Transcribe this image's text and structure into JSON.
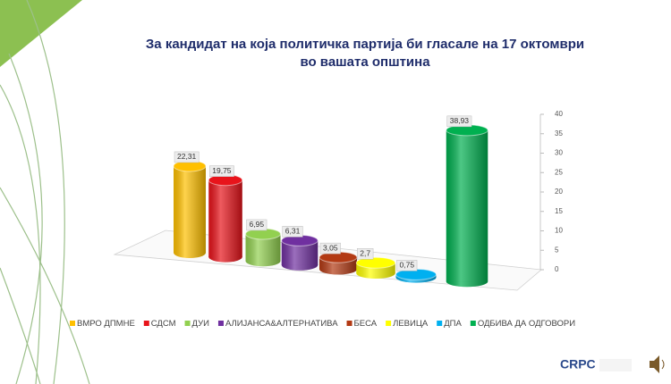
{
  "chart_data": {
    "type": "bar",
    "title": [
      "За кандидат на  која политичка партија би гласале на 17 октомври",
      "во вашата општина"
    ],
    "categories": [
      "ВМРО ДПМНЕ",
      "СДСМ",
      "ДУИ",
      "АЛИЈАНСА&АЛТЕРНАТИВА",
      "БЕСА",
      "ЛЕВИЦА",
      "ДПА",
      "ОДБИВА ДА ОДГОВОРИ"
    ],
    "values": [
      22.31,
      19.75,
      6.95,
      6.31,
      3.05,
      2.7,
      0.75,
      38.93
    ],
    "value_labels": [
      "22,31",
      "19,75",
      "6,95",
      "6,31",
      "3,05",
      "2,7",
      "0,75",
      "38,93"
    ],
    "colors": [
      "#ffc000",
      "#e8141b",
      "#92d050",
      "#7030a0",
      "#b33a14",
      "#ffff00",
      "#00b0f0",
      "#00b050"
    ],
    "ylim": [
      0,
      40
    ],
    "yticks": [
      0,
      5,
      10,
      15,
      20,
      25,
      30,
      35,
      40
    ],
    "grid": false,
    "legend": "bottom",
    "logo": "CRPC"
  }
}
